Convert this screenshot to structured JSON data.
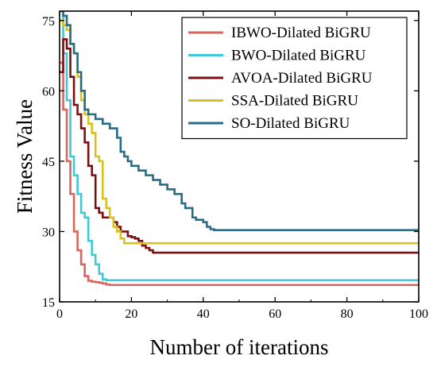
{
  "chart_data": {
    "type": "line",
    "title": "",
    "xlabel": "Number of iterations",
    "ylabel": "Fitness Value",
    "xlim": [
      0,
      100
    ],
    "ylim": [
      15,
      77
    ],
    "xticks": [
      0,
      20,
      40,
      60,
      80,
      100
    ],
    "yticks": [
      15,
      30,
      45,
      60,
      75
    ],
    "grid": false,
    "legend_position": "top-right",
    "series": [
      {
        "name": "IBWO-Dilated BiGRU",
        "color": "#d9665c",
        "x": [
          0,
          1,
          2,
          3,
          4,
          5,
          6,
          7,
          8,
          9,
          10,
          11,
          12,
          13,
          14,
          100
        ],
        "y": [
          66,
          56,
          45,
          38,
          30,
          26,
          23,
          20.5,
          19.5,
          19.3,
          19.2,
          19.1,
          18.9,
          18.7,
          18.6,
          18.6
        ]
      },
      {
        "name": "BWO-Dilated BiGRU",
        "color": "#3fc8d8",
        "x": [
          0,
          1,
          2,
          3,
          4,
          5,
          6,
          7,
          8,
          9,
          10,
          11,
          12,
          13,
          100
        ],
        "y": [
          78,
          68,
          58,
          46,
          42,
          38,
          34,
          33,
          28,
          25,
          23,
          21,
          19.8,
          19.6,
          19.6
        ]
      },
      {
        "name": "AVOA-Dilated BiGRU",
        "color": "#7a1010",
        "x": [
          0,
          1,
          2,
          3,
          4,
          5,
          6,
          7,
          8,
          9,
          10,
          11,
          12,
          13,
          14,
          15,
          16,
          17,
          18,
          19,
          20,
          21,
          22,
          23,
          24,
          25,
          26,
          100
        ],
        "y": [
          64,
          71,
          69,
          63,
          57,
          55,
          52,
          49,
          44,
          42,
          35,
          34,
          33,
          33,
          33,
          32,
          31,
          30,
          30,
          29,
          28.8,
          28.5,
          28,
          27,
          26.5,
          26,
          25.5,
          25.5
        ]
      },
      {
        "name": "SSA-Dilated BiGRU",
        "color": "#d7c21e",
        "x": [
          0,
          1,
          2,
          3,
          4,
          5,
          6,
          7,
          8,
          9,
          10,
          11,
          12,
          13,
          14,
          15,
          16,
          17,
          18,
          100
        ],
        "y": [
          75,
          74,
          73,
          70,
          68,
          63,
          58,
          55,
          53,
          51,
          46,
          45,
          37,
          35,
          33,
          31,
          30,
          28.5,
          27.5,
          27.5
        ]
      },
      {
        "name": "SO-Dilated BiGRU",
        "color": "#2a6b85",
        "x": [
          0,
          1,
          2,
          3,
          4,
          5,
          6,
          7,
          8,
          10,
          12,
          14,
          16,
          17,
          18,
          19,
          20,
          22,
          24,
          26,
          28,
          30,
          32,
          34,
          35,
          37,
          38,
          40,
          41,
          42,
          43,
          44,
          100
        ],
        "y": [
          77,
          76,
          74,
          70,
          68,
          64,
          60,
          56,
          55,
          54,
          53,
          52,
          50,
          47,
          46,
          45,
          44,
          43,
          42,
          41,
          40,
          39,
          38,
          36,
          35,
          33,
          32.5,
          32,
          31,
          30.5,
          30.3,
          30.3,
          30.3
        ]
      }
    ]
  }
}
